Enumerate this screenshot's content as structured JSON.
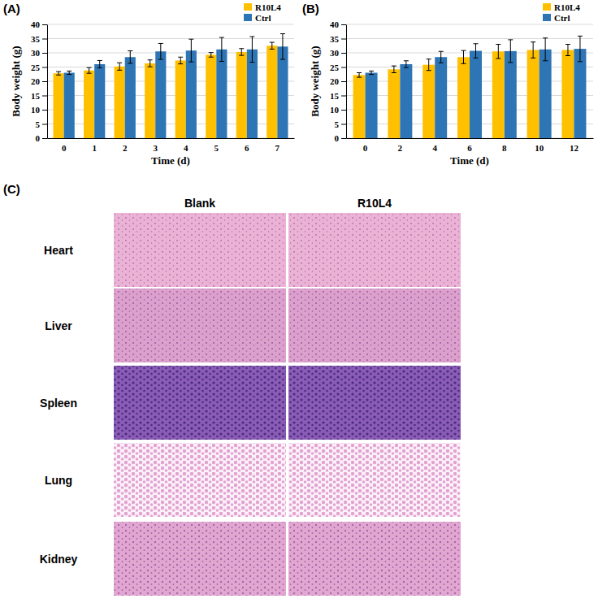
{
  "chart_data": [
    {
      "type": "bar",
      "title": "(A)",
      "x_label": "Time (d)",
      "y_label": "Body weight (g)",
      "categories": [
        "0",
        "1",
        "2",
        "3",
        "4",
        "5",
        "6",
        "7"
      ],
      "series": [
        {
          "name": "R10L4",
          "color": "#ffc000",
          "values": [
            22.8,
            23.8,
            25.2,
            26.3,
            27.3,
            29.3,
            30.3,
            32.5
          ],
          "errors": [
            0.6,
            1.0,
            1.3,
            1.2,
            1.2,
            0.8,
            1.2,
            1.2
          ]
        },
        {
          "name": "Ctrl",
          "color": "#2e75b6",
          "values": [
            23.0,
            26.0,
            28.5,
            30.5,
            30.8,
            31.2,
            31.2,
            32.2
          ],
          "errors": [
            0.6,
            1.3,
            2.2,
            2.8,
            4.0,
            4.2,
            4.5,
            4.5
          ]
        }
      ],
      "ylim": [
        0,
        40
      ],
      "yticks": [
        0,
        5,
        10,
        15,
        20,
        25,
        30,
        35,
        40
      ],
      "grid": true,
      "legend": "top-right"
    },
    {
      "type": "bar",
      "title": "(B)",
      "x_label": "Time (d)",
      "y_label": "Body weight (g)",
      "categories": [
        "0",
        "2",
        "4",
        "6",
        "8",
        "10",
        "12"
      ],
      "series": [
        {
          "name": "R10L4",
          "color": "#ffc000",
          "values": [
            22.2,
            24.2,
            25.8,
            28.5,
            30.5,
            31.0,
            31.0
          ],
          "errors": [
            0.8,
            1.2,
            2.0,
            2.3,
            2.5,
            2.8,
            2.0
          ]
        },
        {
          "name": "Ctrl",
          "color": "#2e75b6",
          "values": [
            23.0,
            26.0,
            28.5,
            30.7,
            30.6,
            31.2,
            31.4
          ],
          "errors": [
            0.6,
            1.2,
            2.0,
            2.5,
            4.0,
            4.0,
            4.5
          ]
        }
      ],
      "ylim": [
        0,
        40
      ],
      "yticks": [
        0,
        5,
        10,
        15,
        20,
        25,
        30,
        35,
        40
      ],
      "grid": true,
      "legend": "top-right"
    },
    {
      "type": "image_grid",
      "title": "(C)",
      "columns": [
        "Blank",
        "R10L4"
      ],
      "rows": [
        "Heart",
        "Liver",
        "Spleen",
        "Lung",
        "Kidney"
      ]
    }
  ]
}
